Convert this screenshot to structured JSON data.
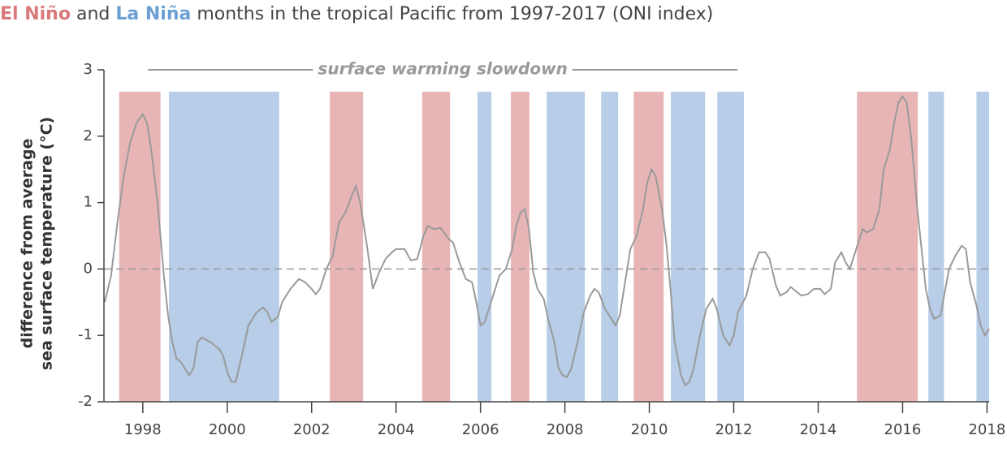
{
  "chart_data": {
    "type": "line",
    "title_segments": [
      {
        "text": "El Niño",
        "color": "#d9797b"
      },
      {
        "text": " and ",
        "color": "#444444"
      },
      {
        "text": "La Niña",
        "color": "#6b9fd3"
      },
      {
        "text": " months in the tropical Pacific from 1997-2017 (ONI index)",
        "color": "#444444"
      }
    ],
    "y_label": [
      "difference from average",
      "sea surface temperature (°C)"
    ],
    "annotation": {
      "text": "surface warming slowdown",
      "span": [
        1998.12,
        2012.09
      ]
    },
    "xlim": [
      1997.08,
      2018.05
    ],
    "xticks": [
      1998,
      2000,
      2002,
      2004,
      2006,
      2008,
      2010,
      2012,
      2014,
      2016,
      2018
    ],
    "ylim": [
      -2,
      3
    ],
    "yticks": [
      -2,
      -1,
      0,
      1,
      2,
      3
    ],
    "hline": 0,
    "line_color": "#9a9a9a",
    "el_nino_color": "#e8b5b6",
    "la_nina_color": "#b7cde8",
    "el_nino_periods": [
      [
        1997.44,
        1998.42
      ],
      [
        2002.43,
        2003.22
      ],
      [
        2004.62,
        2005.28
      ],
      [
        2006.72,
        2007.16
      ],
      [
        2009.63,
        2010.34
      ],
      [
        2014.92,
        2016.36
      ]
    ],
    "la_nina_periods": [
      [
        1998.62,
        2001.23
      ],
      [
        2005.93,
        2006.26
      ],
      [
        2007.57,
        2008.47
      ],
      [
        2008.86,
        2009.26
      ],
      [
        2010.51,
        2011.32
      ],
      [
        2011.61,
        2012.24
      ],
      [
        2016.61,
        2016.98
      ],
      [
        2017.75,
        2018.06
      ]
    ],
    "x": [
      1997.1,
      1997.25,
      1997.4,
      1997.55,
      1997.7,
      1997.85,
      1998.0,
      1998.1,
      1998.2,
      1998.35,
      1998.5,
      1998.6,
      1998.7,
      1998.8,
      1998.9,
      1999.0,
      1999.1,
      1999.2,
      1999.3,
      1999.4,
      1999.5,
      1999.6,
      1999.7,
      1999.8,
      1999.9,
      2000.0,
      2000.1,
      2000.2,
      2000.35,
      2000.5,
      2000.7,
      2000.85,
      2000.95,
      2001.05,
      2001.2,
      2001.3,
      2001.5,
      2001.7,
      2001.85,
      2002.0,
      2002.1,
      2002.2,
      2002.35,
      2002.5,
      2002.65,
      2002.8,
      2002.95,
      2003.05,
      2003.15,
      2003.3,
      2003.45,
      2003.6,
      2003.75,
      2003.9,
      2004.0,
      2004.2,
      2004.35,
      2004.5,
      2004.65,
      2004.75,
      2004.9,
      2005.05,
      2005.25,
      2005.35,
      2005.5,
      2005.65,
      2005.8,
      2005.9,
      2006.0,
      2006.1,
      2006.3,
      2006.45,
      2006.6,
      2006.75,
      2006.85,
      2006.95,
      2007.05,
      2007.15,
      2007.25,
      2007.35,
      2007.5,
      2007.6,
      2007.75,
      2007.85,
      2007.95,
      2008.05,
      2008.15,
      2008.3,
      2008.45,
      2008.6,
      2008.7,
      2008.8,
      2008.95,
      2009.1,
      2009.2,
      2009.3,
      2009.4,
      2009.55,
      2009.7,
      2009.85,
      2009.95,
      2010.05,
      2010.15,
      2010.3,
      2010.4,
      2010.5,
      2010.6,
      2010.75,
      2010.85,
      2010.95,
      2011.05,
      2011.2,
      2011.35,
      2011.5,
      2011.6,
      2011.75,
      2011.9,
      2012.0,
      2012.1,
      2012.3,
      2012.45,
      2012.6,
      2012.75,
      2012.85,
      2013.0,
      2013.1,
      2013.25,
      2013.35,
      2013.5,
      2013.6,
      2013.75,
      2013.9,
      2014.05,
      2014.15,
      2014.3,
      2014.4,
      2014.55,
      2014.65,
      2014.75,
      2014.9,
      2015.05,
      2015.15,
      2015.3,
      2015.45,
      2015.55,
      2015.7,
      2015.8,
      2015.9,
      2016.0,
      2016.1,
      2016.2,
      2016.35,
      2016.45,
      2016.55,
      2016.65,
      2016.75,
      2016.9,
      2017.0,
      2017.1,
      2017.25,
      2017.4,
      2017.5,
      2017.6,
      2017.75,
      2017.85,
      2017.95,
      2018.05
    ],
    "values": [
      -0.5,
      -0.1,
      0.7,
      1.4,
      1.9,
      2.2,
      2.33,
      2.2,
      1.8,
      1.0,
      -0.1,
      -0.7,
      -1.1,
      -1.35,
      -1.4,
      -1.5,
      -1.6,
      -1.5,
      -1.1,
      -1.03,
      -1.07,
      -1.1,
      -1.15,
      -1.2,
      -1.3,
      -1.55,
      -1.7,
      -1.7,
      -1.3,
      -0.85,
      -0.65,
      -0.58,
      -0.65,
      -0.8,
      -0.72,
      -0.5,
      -0.3,
      -0.15,
      -0.2,
      -0.3,
      -0.38,
      -0.3,
      0.0,
      0.2,
      0.7,
      0.85,
      1.1,
      1.25,
      1.0,
      0.4,
      -0.3,
      -0.05,
      0.15,
      0.25,
      0.3,
      0.3,
      0.13,
      0.15,
      0.5,
      0.65,
      0.6,
      0.62,
      0.45,
      0.4,
      0.1,
      -0.15,
      -0.2,
      -0.5,
      -0.85,
      -0.8,
      -0.4,
      -0.1,
      0.0,
      0.3,
      0.65,
      0.85,
      0.9,
      0.6,
      -0.05,
      -0.3,
      -0.45,
      -0.75,
      -1.1,
      -1.5,
      -1.6,
      -1.63,
      -1.5,
      -1.1,
      -0.65,
      -0.4,
      -0.3,
      -0.35,
      -0.6,
      -0.75,
      -0.85,
      -0.7,
      -0.3,
      0.3,
      0.5,
      0.9,
      1.3,
      1.5,
      1.4,
      0.9,
      0.4,
      -0.3,
      -1.1,
      -1.6,
      -1.75,
      -1.7,
      -1.5,
      -1.0,
      -0.6,
      -0.45,
      -0.6,
      -1.0,
      -1.15,
      -1.0,
      -0.65,
      -0.4,
      0.0,
      0.25,
      0.25,
      0.15,
      -0.25,
      -0.4,
      -0.35,
      -0.27,
      -0.35,
      -0.4,
      -0.38,
      -0.3,
      -0.3,
      -0.38,
      -0.3,
      0.1,
      0.25,
      0.1,
      0.0,
      0.3,
      0.6,
      0.55,
      0.6,
      0.9,
      1.5,
      1.8,
      2.2,
      2.5,
      2.6,
      2.5,
      2.0,
      0.9,
      0.3,
      -0.3,
      -0.6,
      -0.75,
      -0.7,
      -0.35,
      0.0,
      0.2,
      0.35,
      0.3,
      -0.2,
      -0.55,
      -0.85,
      -1.0,
      -0.9
    ]
  }
}
